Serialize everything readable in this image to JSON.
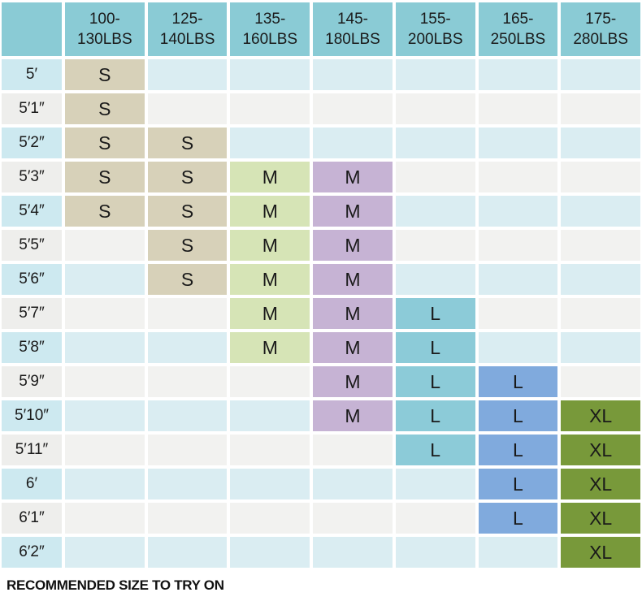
{
  "colors": {
    "header_teal": "#8acbd5",
    "row_blue": "#daedf2",
    "row_gray": "#f2f2f0",
    "label_blue": "#cde9f0",
    "label_gray": "#eeeeec",
    "size_s_tan": "#d7d1b9",
    "size_m_green": "#d6e4b6",
    "size_m_purple": "#c6b3d4",
    "size_l_teal": "#8ccbd8",
    "size_l_blue": "#80aadd",
    "size_xl_olive": "#78993a",
    "cell_text": "#1a1a1a",
    "background": "#ffffff"
  },
  "chart_data": {
    "type": "table",
    "title": "",
    "corner_label": "",
    "weight_columns": [
      "100-\n130LBS",
      "125-\n140LBS",
      "135-\n160LBS",
      "145-\n180LBS",
      "155-\n200LBS",
      "165-\n250LBS",
      "175-\n280LBS"
    ],
    "height_rows": [
      {
        "height": "5′",
        "sizes": [
          "S",
          "",
          "",
          "",
          "",
          "",
          ""
        ]
      },
      {
        "height": "5′1″",
        "sizes": [
          "S",
          "",
          "",
          "",
          "",
          "",
          ""
        ]
      },
      {
        "height": "5′2″",
        "sizes": [
          "S",
          "S",
          "",
          "",
          "",
          "",
          ""
        ]
      },
      {
        "height": "5′3″",
        "sizes": [
          "S",
          "S",
          "M",
          "M",
          "",
          "",
          ""
        ]
      },
      {
        "height": "5′4″",
        "sizes": [
          "S",
          "S",
          "M",
          "M",
          "",
          "",
          ""
        ]
      },
      {
        "height": "5′5″",
        "sizes": [
          "",
          "S",
          "M",
          "M",
          "",
          "",
          ""
        ]
      },
      {
        "height": "5′6″",
        "sizes": [
          "",
          "S",
          "M",
          "M",
          "",
          "",
          ""
        ]
      },
      {
        "height": "5′7″",
        "sizes": [
          "",
          "",
          "M",
          "M",
          "L",
          "",
          ""
        ]
      },
      {
        "height": "5′8″",
        "sizes": [
          "",
          "",
          "M",
          "M",
          "L",
          "",
          ""
        ]
      },
      {
        "height": "5′9″",
        "sizes": [
          "",
          "",
          "",
          "M",
          "L",
          "L",
          ""
        ]
      },
      {
        "height": "5′10″",
        "sizes": [
          "",
          "",
          "",
          "M",
          "L",
          "L",
          "XL"
        ]
      },
      {
        "height": "5′11″",
        "sizes": [
          "",
          "",
          "",
          "",
          "L",
          "L",
          "XL"
        ]
      },
      {
        "height": "6′",
        "sizes": [
          "",
          "",
          "",
          "",
          "",
          "L",
          "XL"
        ]
      },
      {
        "height": "6′1″",
        "sizes": [
          "",
          "",
          "",
          "",
          "",
          "L",
          "XL"
        ]
      },
      {
        "height": "6′2″",
        "sizes": [
          "",
          "",
          "",
          "",
          "",
          "",
          "XL"
        ]
      }
    ],
    "legend_note": "RECOMMENDED SIZE TO TRY ON"
  }
}
